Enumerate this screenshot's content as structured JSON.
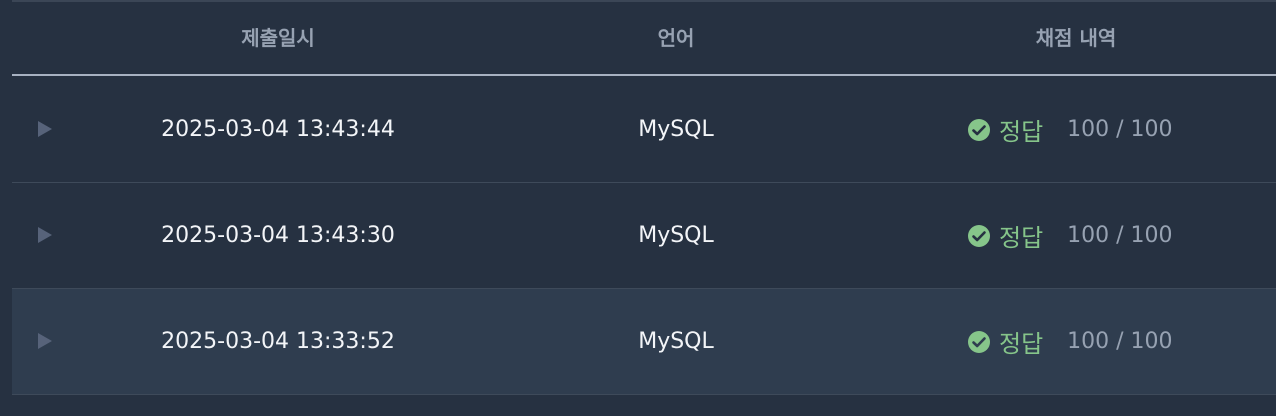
{
  "header": {
    "submitted_at": "제출일시",
    "language": "언어",
    "grading_history": "채점 내역"
  },
  "rows": [
    {
      "date": "2025-03-04 13:43:44",
      "language": "MySQL",
      "result": "정답",
      "score": "100 / 100"
    },
    {
      "date": "2025-03-04 13:43:30",
      "language": "MySQL",
      "result": "정답",
      "score": "100 / 100"
    },
    {
      "date": "2025-03-04 13:33:52",
      "language": "MySQL",
      "result": "정답",
      "score": "100 / 100"
    }
  ],
  "colors": {
    "background": "#263141",
    "highlight_row": "#2f3d4f",
    "success": "#86c58a",
    "header_text": "#97a2b2"
  },
  "icons": {
    "row_toggle": "play-triangle-icon",
    "result": "check-circle-icon"
  }
}
